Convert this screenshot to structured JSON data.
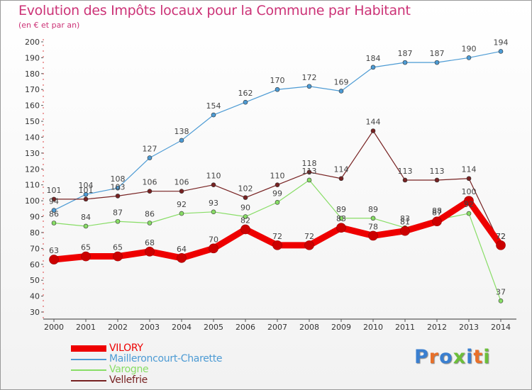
{
  "header": {
    "title": "Evolution des Impôts locaux pour la Commune par Habitant",
    "subtitle": "(en € et par an)"
  },
  "branding": {
    "logo_text": "Proxiti"
  },
  "chart_data": {
    "type": "line",
    "title": "Evolution des Impôts locaux pour la Commune par Habitant",
    "subtitle": "(en € et par an)",
    "xlabel": "",
    "ylabel": "",
    "x": [
      "2000",
      "2001",
      "2002",
      "2003",
      "2004",
      "2005",
      "2006",
      "2007",
      "2008",
      "2009",
      "2010",
      "2011",
      "2012",
      "2013",
      "2014"
    ],
    "ylim": [
      30,
      200
    ],
    "yticks": [
      30,
      40,
      50,
      60,
      70,
      80,
      90,
      100,
      110,
      120,
      130,
      140,
      150,
      160,
      170,
      180,
      190,
      200
    ],
    "grid": false,
    "legend": "bottom-left",
    "series": [
      {
        "name": "VILORY",
        "color": "#ee0000",
        "values": [
          63,
          65,
          65,
          68,
          64,
          70,
          82,
          72,
          72,
          83,
          78,
          81,
          87,
          100,
          72
        ]
      },
      {
        "name": "Mailleroncourt-Charette",
        "color": "#4d9bd4",
        "values": [
          94,
          104,
          108,
          127,
          138,
          154,
          162,
          170,
          172,
          169,
          184,
          187,
          187,
          190,
          194
        ]
      },
      {
        "name": "Varogne",
        "color": "#88dd66",
        "values": [
          86,
          84,
          87,
          86,
          92,
          93,
          90,
          99,
          113,
          89,
          89,
          83,
          88,
          92,
          37
        ]
      },
      {
        "name": "Vellefrie",
        "color": "#772222",
        "values": [
          101,
          101,
          103,
          106,
          106,
          110,
          102,
          110,
          118,
          114,
          144,
          113,
          113,
          114,
          72
        ]
      }
    ]
  }
}
